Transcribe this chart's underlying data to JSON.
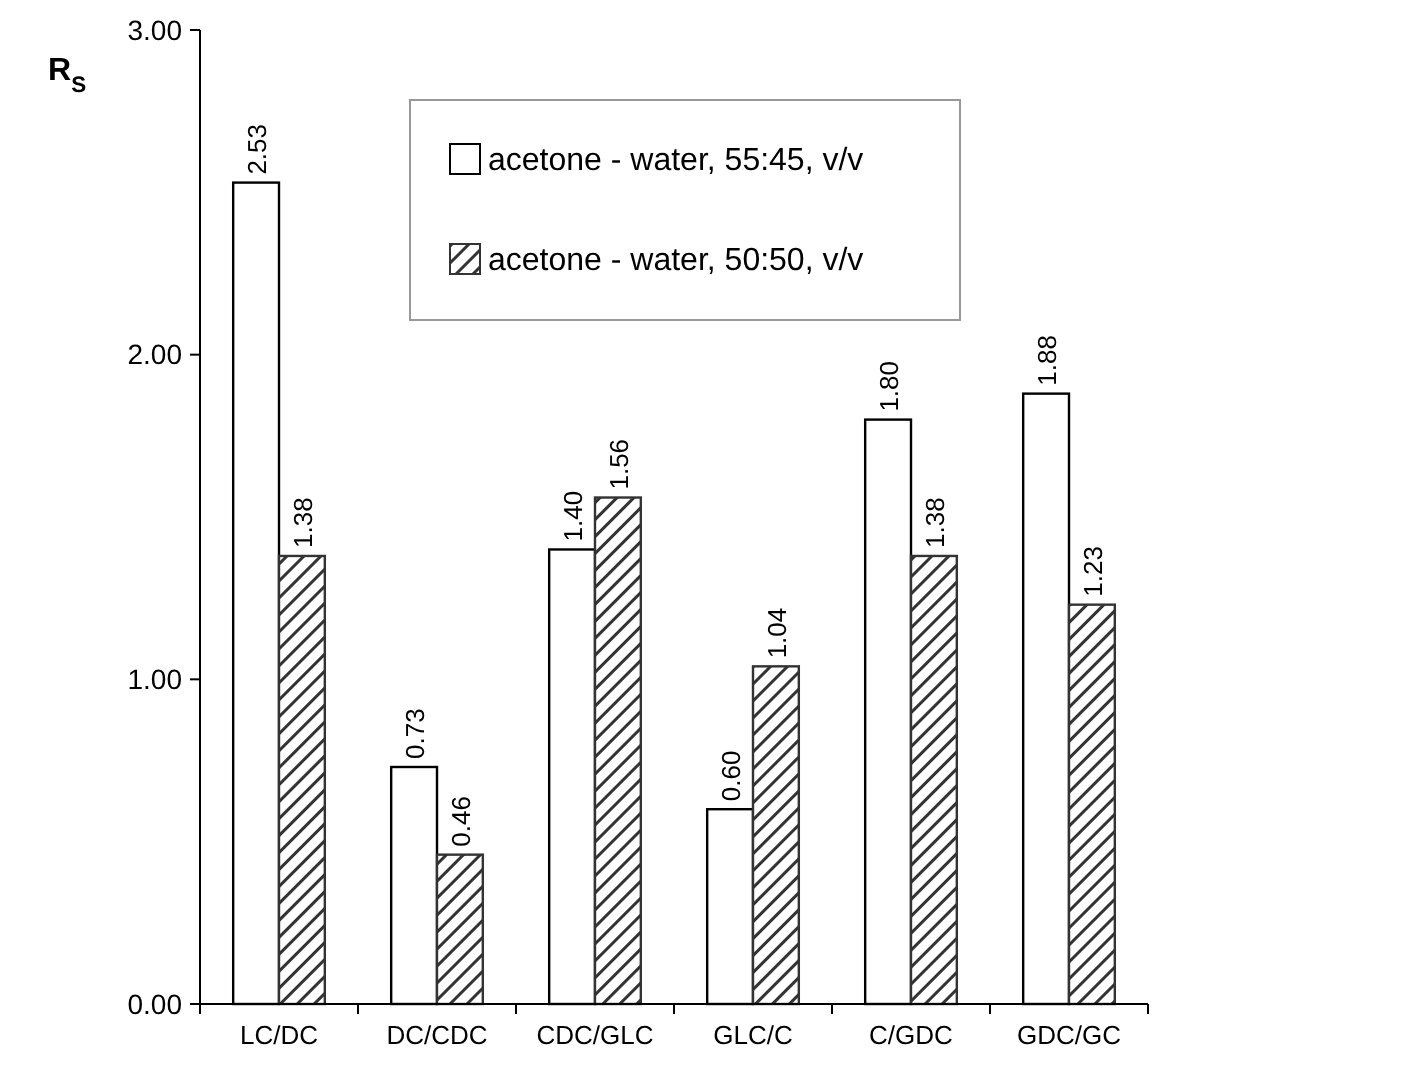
{
  "chart_data": {
    "type": "bar",
    "ylabel": "R$_{S}$",
    "categories": [
      "LC/DC",
      "DC/CDC",
      "CDC/GLC",
      "GLC/C",
      "C/GDC",
      "GDC/GC"
    ],
    "series": [
      {
        "name": "acetone - water, 55:45, v/v",
        "color": "#ffffff",
        "values": [
          2.53,
          0.73,
          1.4,
          0.6,
          1.8,
          1.88
        ],
        "value_labels": [
          "2.53",
          "0.73",
          "1.40",
          "0.60",
          "1.80",
          "1.88"
        ]
      },
      {
        "name": "acetone - water, 50:50, v/v",
        "color": "#333333",
        "values": [
          1.38,
          0.46,
          1.56,
          1.04,
          1.38,
          1.23
        ],
        "value_labels": [
          "1.38",
          "0.46",
          "1.56",
          "1.04",
          "1.38",
          "1.23"
        ]
      }
    ],
    "ylim": [
      0,
      3
    ],
    "yticks": [
      {
        "value": 0,
        "label": "0.00"
      },
      {
        "value": 1,
        "label": "1.00"
      },
      {
        "value": 2,
        "label": "2.00"
      },
      {
        "value": 3,
        "label": "3.00"
      }
    ],
    "legend": "top",
    "grid": false
  }
}
